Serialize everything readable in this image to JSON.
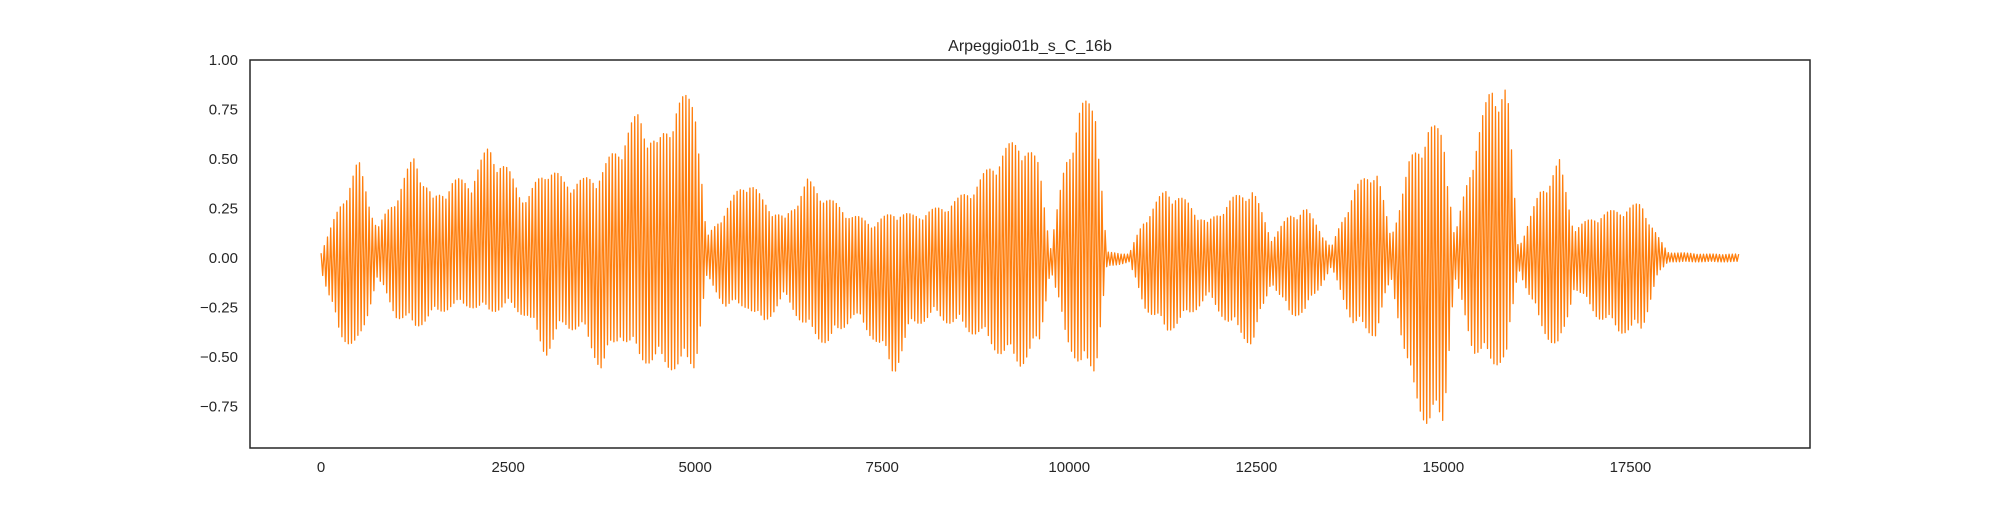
{
  "chart_data": {
    "type": "line",
    "title": "Arpeggio01b_s_C_16b",
    "xlabel": "",
    "ylabel": "",
    "xlim": [
      -950,
      19900
    ],
    "ylim": [
      -0.96,
      1.0
    ],
    "grid": false,
    "legend": "none",
    "line_color": "#ff7f0e",
    "x_ticks": [
      0,
      2500,
      5000,
      7500,
      10000,
      12500,
      15000,
      17500
    ],
    "x_tick_labels": [
      "0",
      "2500",
      "5000",
      "7500",
      "10000",
      "12500",
      "15000",
      "17500"
    ],
    "y_ticks": [
      1.0,
      0.75,
      0.5,
      0.25,
      0.0,
      -0.25,
      -0.5,
      -0.75
    ],
    "y_tick_labels": [
      "1.00",
      "0.75",
      "0.50",
      "0.25",
      "0.00",
      "−0.25",
      "−0.50",
      "−0.75"
    ],
    "sample_count": 18950,
    "envelope": [
      {
        "x": 0,
        "max": 0.03,
        "min": -0.06
      },
      {
        "x": 250,
        "max": 0.27,
        "min": -0.4
      },
      {
        "x": 500,
        "max": 0.5,
        "min": -0.48
      },
      {
        "x": 750,
        "max": 0.15,
        "min": -0.1
      },
      {
        "x": 1000,
        "max": 0.32,
        "min": -0.3
      },
      {
        "x": 1250,
        "max": 0.53,
        "min": -0.36
      },
      {
        "x": 1500,
        "max": 0.3,
        "min": -0.3
      },
      {
        "x": 1750,
        "max": 0.4,
        "min": -0.25
      },
      {
        "x": 2000,
        "max": 0.4,
        "min": -0.25
      },
      {
        "x": 2250,
        "max": 0.58,
        "min": -0.28
      },
      {
        "x": 2500,
        "max": 0.45,
        "min": -0.25
      },
      {
        "x": 2750,
        "max": 0.3,
        "min": -0.3
      },
      {
        "x": 3000,
        "max": 0.48,
        "min": -0.5
      },
      {
        "x": 3250,
        "max": 0.4,
        "min": -0.35
      },
      {
        "x": 3500,
        "max": 0.4,
        "min": -0.38
      },
      {
        "x": 3750,
        "max": 0.45,
        "min": -0.58
      },
      {
        "x": 4000,
        "max": 0.6,
        "min": -0.4
      },
      {
        "x": 4250,
        "max": 0.75,
        "min": -0.52
      },
      {
        "x": 4500,
        "max": 0.58,
        "min": -0.55
      },
      {
        "x": 4750,
        "max": 0.8,
        "min": -0.57
      },
      {
        "x": 5000,
        "max": 0.85,
        "min": -0.56
      },
      {
        "x": 5150,
        "max": 0.1,
        "min": -0.1
      },
      {
        "x": 5400,
        "max": 0.25,
        "min": -0.25
      },
      {
        "x": 5700,
        "max": 0.42,
        "min": -0.25
      },
      {
        "x": 5900,
        "max": 0.3,
        "min": -0.35
      },
      {
        "x": 6200,
        "max": 0.2,
        "min": -0.2
      },
      {
        "x": 6500,
        "max": 0.4,
        "min": -0.38
      },
      {
        "x": 6800,
        "max": 0.3,
        "min": -0.45
      },
      {
        "x": 7100,
        "max": 0.22,
        "min": -0.3
      },
      {
        "x": 7400,
        "max": 0.18,
        "min": -0.42
      },
      {
        "x": 7650,
        "max": 0.24,
        "min": -0.6
      },
      {
        "x": 7900,
        "max": 0.22,
        "min": -0.35
      },
      {
        "x": 8200,
        "max": 0.25,
        "min": -0.3
      },
      {
        "x": 8500,
        "max": 0.3,
        "min": -0.35
      },
      {
        "x": 8800,
        "max": 0.4,
        "min": -0.4
      },
      {
        "x": 9100,
        "max": 0.55,
        "min": -0.5
      },
      {
        "x": 9350,
        "max": 0.62,
        "min": -0.55
      },
      {
        "x": 9600,
        "max": 0.48,
        "min": -0.45
      },
      {
        "x": 9750,
        "max": 0.05,
        "min": -0.05
      },
      {
        "x": 9950,
        "max": 0.5,
        "min": -0.4
      },
      {
        "x": 10150,
        "max": 0.78,
        "min": -0.58
      },
      {
        "x": 10350,
        "max": 0.82,
        "min": -0.58
      },
      {
        "x": 10500,
        "max": 0.03,
        "min": -0.05
      },
      {
        "x": 10800,
        "max": 0.02,
        "min": -0.02
      },
      {
        "x": 11000,
        "max": 0.2,
        "min": -0.25
      },
      {
        "x": 11300,
        "max": 0.36,
        "min": -0.38
      },
      {
        "x": 11600,
        "max": 0.28,
        "min": -0.3
      },
      {
        "x": 11850,
        "max": 0.18,
        "min": -0.2
      },
      {
        "x": 12150,
        "max": 0.3,
        "min": -0.35
      },
      {
        "x": 12450,
        "max": 0.36,
        "min": -0.45
      },
      {
        "x": 12700,
        "max": 0.1,
        "min": -0.12
      },
      {
        "x": 12950,
        "max": 0.22,
        "min": -0.3
      },
      {
        "x": 13150,
        "max": 0.26,
        "min": -0.28
      },
      {
        "x": 13350,
        "max": 0.15,
        "min": -0.15
      },
      {
        "x": 13500,
        "max": 0.05,
        "min": -0.05
      },
      {
        "x": 13800,
        "max": 0.35,
        "min": -0.35
      },
      {
        "x": 14100,
        "max": 0.48,
        "min": -0.4
      },
      {
        "x": 14300,
        "max": 0.1,
        "min": -0.1
      },
      {
        "x": 14550,
        "max": 0.5,
        "min": -0.65
      },
      {
        "x": 14800,
        "max": 0.68,
        "min": -0.88
      },
      {
        "x": 15000,
        "max": 0.65,
        "min": -0.85
      },
      {
        "x": 15150,
        "max": 0.1,
        "min": -0.1
      },
      {
        "x": 15400,
        "max": 0.55,
        "min": -0.48
      },
      {
        "x": 15650,
        "max": 0.9,
        "min": -0.55
      },
      {
        "x": 15850,
        "max": 0.88,
        "min": -0.52
      },
      {
        "x": 16000,
        "max": 0.05,
        "min": -0.05
      },
      {
        "x": 16300,
        "max": 0.35,
        "min": -0.35
      },
      {
        "x": 16550,
        "max": 0.5,
        "min": -0.5
      },
      {
        "x": 16750,
        "max": 0.15,
        "min": -0.15
      },
      {
        "x": 17050,
        "max": 0.22,
        "min": -0.3
      },
      {
        "x": 17350,
        "max": 0.25,
        "min": -0.38
      },
      {
        "x": 17650,
        "max": 0.28,
        "min": -0.38
      },
      {
        "x": 17850,
        "max": 0.12,
        "min": -0.1
      },
      {
        "x": 18000,
        "max": 0.03,
        "min": -0.02
      },
      {
        "x": 18500,
        "max": 0.02,
        "min": -0.02
      },
      {
        "x": 18950,
        "max": 0.02,
        "min": -0.02
      }
    ]
  }
}
